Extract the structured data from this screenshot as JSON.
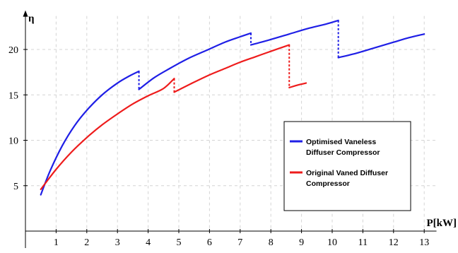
{
  "chart_data": {
    "type": "line",
    "title": "",
    "xlabel": "P[kW]",
    "ylabel": "η",
    "xlim": [
      0,
      13.4
    ],
    "ylim": [
      0,
      24
    ],
    "xticks": [
      1,
      2,
      3,
      4,
      5,
      6,
      7,
      8,
      9,
      10,
      11,
      12,
      13
    ],
    "yticks": [
      5,
      10,
      15,
      20
    ],
    "grid": true,
    "legend": "bottom-right",
    "series": [
      {
        "name": "Optimised Vaneless Diffuser Compressor",
        "color": "#1f1fe6",
        "segments": [
          [
            [
              0.5,
              4.0
            ],
            [
              0.8,
              6.6
            ],
            [
              1.2,
              9.4
            ],
            [
              1.6,
              11.6
            ],
            [
              2.0,
              13.3
            ],
            [
              2.5,
              15.0
            ],
            [
              3.0,
              16.3
            ],
            [
              3.4,
              17.1
            ],
            [
              3.7,
              17.6
            ]
          ],
          [
            [
              3.7,
              15.6
            ],
            [
              4.2,
              16.9
            ],
            [
              4.7,
              17.9
            ],
            [
              5.3,
              19.0
            ],
            [
              5.9,
              19.9
            ],
            [
              6.5,
              20.8
            ],
            [
              7.0,
              21.4
            ],
            [
              7.35,
              21.8
            ]
          ],
          [
            [
              7.35,
              20.5
            ],
            [
              8.0,
              21.1
            ],
            [
              8.6,
              21.7
            ],
            [
              9.2,
              22.3
            ],
            [
              9.8,
              22.8
            ],
            [
              10.2,
              23.2
            ]
          ],
          [
            [
              10.2,
              19.1
            ],
            [
              10.8,
              19.6
            ],
            [
              11.4,
              20.2
            ],
            [
              12.0,
              20.8
            ],
            [
              12.5,
              21.3
            ],
            [
              13.0,
              21.7
            ]
          ]
        ],
        "jumps": [
          [
            [
              3.7,
              17.6
            ],
            [
              3.7,
              15.6
            ]
          ],
          [
            [
              7.35,
              21.8
            ],
            [
              7.35,
              20.5
            ]
          ],
          [
            [
              10.2,
              23.2
            ],
            [
              10.2,
              19.1
            ]
          ]
        ]
      },
      {
        "name": "Original Vaned Diffuser Compressor",
        "color": "#ee1c1c",
        "segments": [
          [
            [
              0.5,
              4.6
            ],
            [
              1.0,
              6.8
            ],
            [
              1.5,
              8.7
            ],
            [
              2.0,
              10.3
            ],
            [
              2.5,
              11.7
            ],
            [
              3.0,
              12.9
            ],
            [
              3.5,
              14.0
            ],
            [
              4.0,
              14.9
            ],
            [
              4.5,
              15.7
            ],
            [
              4.85,
              16.8
            ]
          ],
          [
            [
              4.85,
              15.3
            ],
            [
              5.5,
              16.4
            ],
            [
              6.0,
              17.2
            ],
            [
              6.5,
              17.9
            ],
            [
              7.0,
              18.6
            ],
            [
              7.5,
              19.2
            ],
            [
              8.0,
              19.8
            ],
            [
              8.6,
              20.5
            ]
          ],
          [
            [
              8.6,
              15.8
            ],
            [
              8.9,
              16.1
            ],
            [
              9.15,
              16.3
            ]
          ]
        ],
        "jumps": [
          [
            [
              4.85,
              16.8
            ],
            [
              4.85,
              15.3
            ]
          ],
          [
            [
              8.6,
              20.5
            ],
            [
              8.6,
              15.8
            ]
          ]
        ]
      }
    ]
  },
  "legend": {
    "lines": [
      [
        "Optimised Vaneless",
        "Diffuser Compressor"
      ],
      [
        "Original Vaned Diffuser",
        "Compressor"
      ]
    ]
  }
}
